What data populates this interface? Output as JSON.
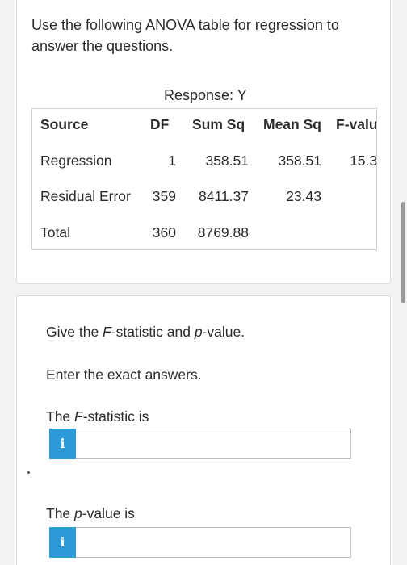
{
  "intro": {
    "text": "Use the following ANOVA table for regression to answer the questions."
  },
  "anova": {
    "response_label": "Response: Y",
    "headers": [
      "Source",
      "DF",
      "Sum Sq",
      "Mean Sq",
      "F-valu"
    ],
    "rows": [
      {
        "source": "Regression",
        "df": "1",
        "sum_sq": "358.51",
        "mean_sq": "358.51",
        "f_value": "15.3"
      },
      {
        "source": "Residual Error",
        "df": "359",
        "sum_sq": "8411.37",
        "mean_sq": "23.43",
        "f_value": ""
      },
      {
        "source": "Total",
        "df": "360",
        "sum_sq": "8769.88",
        "mean_sq": "",
        "f_value": ""
      }
    ]
  },
  "question": {
    "prompt_before_f": "Give the ",
    "prompt_f": "F",
    "prompt_between": "-statistic and ",
    "prompt_p": "p",
    "prompt_after": "-value.",
    "instructions": "Enter the exact answers.",
    "f_label_before": "The ",
    "f_label_var": "F",
    "f_label_after": "-statistic is",
    "p_label_before": "The ",
    "p_label_var": "p",
    "p_label_after": "-value is",
    "info_glyph": "i",
    "f_value": "",
    "p_value": ""
  },
  "icons": {
    "info_icon": "info-icon",
    "info_color": "#2d9ad8"
  }
}
